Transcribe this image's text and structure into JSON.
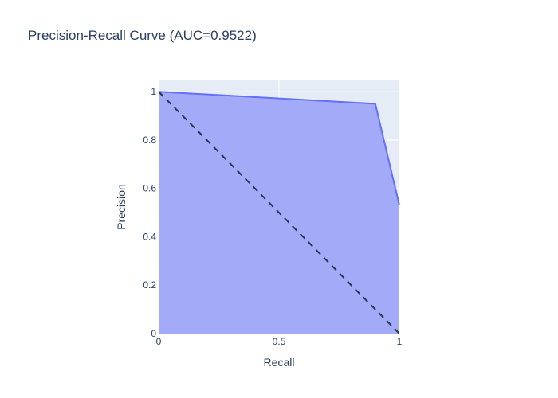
{
  "chart_data": {
    "type": "area",
    "title": "Precision-Recall Curve (AUC=0.9522)",
    "xlabel": "Recall",
    "ylabel": "Precision",
    "xlim": [
      0,
      1
    ],
    "ylim": [
      0,
      1.05
    ],
    "grid": true,
    "x_ticks": [
      {
        "value": 0,
        "label": "0"
      },
      {
        "value": 0.5,
        "label": "0.5"
      },
      {
        "value": 1,
        "label": "1"
      }
    ],
    "y_ticks": [
      {
        "value": 0,
        "label": "0"
      },
      {
        "value": 0.2,
        "label": "0.2"
      },
      {
        "value": 0.4,
        "label": "0.4"
      },
      {
        "value": 0.6,
        "label": "0.6"
      },
      {
        "value": 0.8,
        "label": "0.8"
      },
      {
        "value": 1,
        "label": "1"
      }
    ],
    "series": [
      {
        "kind": "area",
        "color": "#636efa",
        "fill_color": "#a3aaf8",
        "x": [
          0,
          0.9,
          1
        ],
        "y": [
          1,
          0.95,
          0.53
        ]
      },
      {
        "kind": "reference-line",
        "style": "dashed",
        "color": "#2a3450",
        "x": [
          0,
          1
        ],
        "y": [
          1,
          0
        ]
      }
    ],
    "colors": {
      "plot_background": "#e5ecf6",
      "gridline": "#ffffff",
      "text": "#2a3f5f"
    }
  }
}
